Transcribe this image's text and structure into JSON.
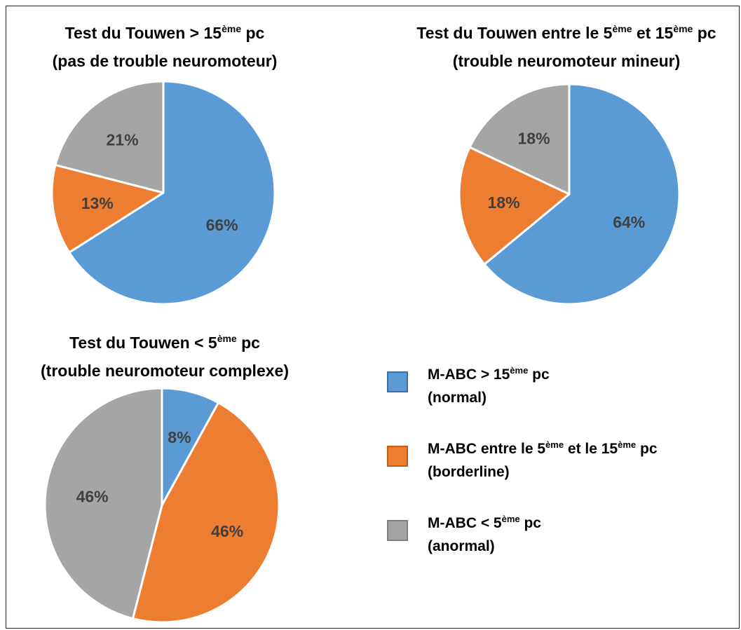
{
  "chart_data": [
    {
      "type": "pie",
      "title_line1_parts": [
        "Test du Touwen > 15",
        "ème",
        " pc"
      ],
      "title_line2": "(pas de trouble neuromoteur)",
      "slices": [
        {
          "series": "normal",
          "value": 66,
          "label": "66%"
        },
        {
          "series": "borderline",
          "value": 13,
          "label": "13%"
        },
        {
          "series": "anormal",
          "value": 21,
          "label": "21%"
        }
      ]
    },
    {
      "type": "pie",
      "title_line1_parts": [
        "Test du Touwen entre le 5",
        "ème",
        " et 15",
        "ème",
        " pc"
      ],
      "title_line2": "(trouble neuromoteur mineur)",
      "slices": [
        {
          "series": "normal",
          "value": 64,
          "label": "64%"
        },
        {
          "series": "borderline",
          "value": 18,
          "label": "18%"
        },
        {
          "series": "anormal",
          "value": 18,
          "label": "18%"
        }
      ]
    },
    {
      "type": "pie",
      "title_line1_parts": [
        "Test du Touwen < 5",
        "ème",
        " pc"
      ],
      "title_line2": "(trouble neuromoteur complexe)",
      "slices": [
        {
          "series": "normal",
          "value": 8,
          "label": "8%"
        },
        {
          "series": "borderline",
          "value": 46,
          "label": "46%"
        },
        {
          "series": "anormal",
          "value": 46,
          "label": "46%"
        }
      ]
    }
  ],
  "legend": {
    "placement": "bottom-right",
    "items": [
      {
        "series": "normal",
        "line1_parts": [
          "M-ABC > 15",
          "ème",
          " pc"
        ],
        "line2": "(normal)",
        "color": "#5b9bd5"
      },
      {
        "series": "borderline",
        "line1_parts": [
          "M-ABC entre le 5",
          "ème",
          " et le 15",
          "ème",
          " pc"
        ],
        "line2": "(borderline)",
        "color": "#ed7d31"
      },
      {
        "series": "anormal",
        "line1_parts": [
          "M-ABC < 5",
          "ème",
          " pc"
        ],
        "line2": "(anormal)",
        "color": "#a5a5a5"
      }
    ]
  },
  "colors": {
    "normal": "#5b9bd5",
    "borderline": "#ed7d31",
    "anormal": "#a5a5a5",
    "label_text": "#404040",
    "slice_border": "#ffffff"
  }
}
